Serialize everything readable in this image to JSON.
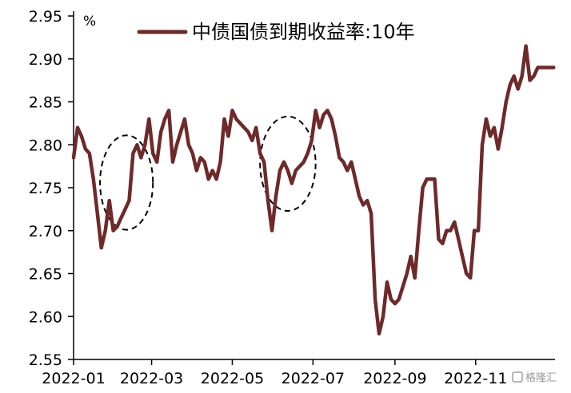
{
  "chart_data": {
    "type": "line",
    "title": "",
    "ylabel": "%",
    "xlabel": "",
    "ylim": [
      2.55,
      2.95
    ],
    "yticks": [
      2.55,
      2.6,
      2.65,
      2.7,
      2.75,
      2.8,
      2.85,
      2.9,
      2.95
    ],
    "ytick_labels": [
      "2.55",
      "2.60",
      "2.65",
      "2.70",
      "2.75",
      "2.80",
      "2.85",
      "2.90",
      "2.95"
    ],
    "xlim": [
      "2022-01-01",
      "2022-12-31"
    ],
    "xticks": [
      "2022-01-01",
      "2022-03-01",
      "2022-05-01",
      "2022-07-01",
      "2022-09-01",
      "2022-11-01"
    ],
    "xtick_labels": [
      "2022-01",
      "2022-03",
      "2022-05",
      "2022-07",
      "2022-09",
      "2022-11"
    ],
    "grid": false,
    "legend_position": "top",
    "colors": {
      "line": "#6e2a2a",
      "axis": "#000000",
      "annotation": "#000000"
    },
    "series": [
      {
        "name": "中债国债到期收益率:10年",
        "x": [
          "2022-01-01",
          "2022-01-04",
          "2022-01-07",
          "2022-01-10",
          "2022-01-13",
          "2022-01-16",
          "2022-01-19",
          "2022-01-22",
          "2022-01-25",
          "2022-01-28",
          "2022-01-31",
          "2022-02-03",
          "2022-02-06",
          "2022-02-09",
          "2022-02-12",
          "2022-02-15",
          "2022-02-18",
          "2022-02-21",
          "2022-02-24",
          "2022-02-27",
          "2022-03-02",
          "2022-03-05",
          "2022-03-08",
          "2022-03-11",
          "2022-03-14",
          "2022-03-17",
          "2022-03-20",
          "2022-03-23",
          "2022-03-26",
          "2022-03-29",
          "2022-04-01",
          "2022-04-04",
          "2022-04-07",
          "2022-04-10",
          "2022-04-13",
          "2022-04-16",
          "2022-04-19",
          "2022-04-22",
          "2022-04-25",
          "2022-04-28",
          "2022-05-01",
          "2022-05-04",
          "2022-05-07",
          "2022-05-10",
          "2022-05-13",
          "2022-05-16",
          "2022-05-19",
          "2022-05-22",
          "2022-05-25",
          "2022-05-28",
          "2022-05-31",
          "2022-06-03",
          "2022-06-06",
          "2022-06-09",
          "2022-06-12",
          "2022-06-15",
          "2022-06-18",
          "2022-06-21",
          "2022-06-24",
          "2022-06-27",
          "2022-06-30",
          "2022-07-03",
          "2022-07-06",
          "2022-07-09",
          "2022-07-12",
          "2022-07-15",
          "2022-07-18",
          "2022-07-21",
          "2022-07-24",
          "2022-07-27",
          "2022-07-30",
          "2022-08-02",
          "2022-08-05",
          "2022-08-08",
          "2022-08-11",
          "2022-08-14",
          "2022-08-17",
          "2022-08-20",
          "2022-08-23",
          "2022-08-26",
          "2022-08-29",
          "2022-09-01",
          "2022-09-04",
          "2022-09-07",
          "2022-09-10",
          "2022-09-13",
          "2022-09-16",
          "2022-09-19",
          "2022-09-22",
          "2022-09-25",
          "2022-09-28",
          "2022-10-01",
          "2022-10-04",
          "2022-10-07",
          "2022-10-10",
          "2022-10-13",
          "2022-10-16",
          "2022-10-19",
          "2022-10-22",
          "2022-10-25",
          "2022-10-28",
          "2022-10-31",
          "2022-11-03",
          "2022-11-06",
          "2022-11-09",
          "2022-11-12",
          "2022-11-15",
          "2022-11-18",
          "2022-11-21",
          "2022-11-24",
          "2022-11-27",
          "2022-11-30",
          "2022-12-03",
          "2022-12-06",
          "2022-12-09",
          "2022-12-12",
          "2022-12-15",
          "2022-12-18",
          "2022-12-21",
          "2022-12-24",
          "2022-12-27",
          "2022-12-30"
        ],
        "values": [
          2.785,
          2.82,
          2.81,
          2.795,
          2.79,
          2.76,
          2.72,
          2.68,
          2.7,
          2.735,
          2.7,
          2.705,
          2.715,
          2.725,
          2.735,
          2.79,
          2.8,
          2.785,
          2.8,
          2.83,
          2.79,
          2.78,
          2.815,
          2.83,
          2.84,
          2.78,
          2.8,
          2.815,
          2.83,
          2.8,
          2.79,
          2.77,
          2.785,
          2.78,
          2.76,
          2.77,
          2.76,
          2.78,
          2.83,
          2.81,
          2.84,
          2.83,
          2.825,
          2.82,
          2.815,
          2.805,
          2.82,
          2.79,
          2.78,
          2.735,
          2.7,
          2.74,
          2.77,
          2.78,
          2.77,
          2.755,
          2.77,
          2.775,
          2.78,
          2.79,
          2.805,
          2.84,
          2.82,
          2.835,
          2.84,
          2.83,
          2.81,
          2.785,
          2.78,
          2.77,
          2.78,
          2.76,
          2.74,
          2.73,
          2.735,
          2.72,
          2.62,
          2.58,
          2.6,
          2.64,
          2.62,
          2.615,
          2.62,
          2.635,
          2.65,
          2.67,
          2.645,
          2.7,
          2.75,
          2.76,
          2.76,
          2.76,
          2.69,
          2.685,
          2.7,
          2.7,
          2.71,
          2.69,
          2.67,
          2.65,
          2.645,
          2.7,
          2.7,
          2.8,
          2.83,
          2.81,
          2.82,
          2.795,
          2.82,
          2.85,
          2.87,
          2.88,
          2.865,
          2.88,
          2.915,
          2.875,
          2.88,
          2.89,
          2.89,
          2.89,
          2.89,
          2.89
        ]
      }
    ],
    "annotations": [
      {
        "type": "ellipse",
        "cx": "2022-02-10",
        "cy": 2.756,
        "rx_days": 20,
        "ry": 0.11
      },
      {
        "type": "ellipse",
        "cx": "2022-06-12",
        "cy": 2.778,
        "rx_days": 21,
        "ry": 0.11
      }
    ]
  },
  "watermark": {
    "text": "格隆汇"
  }
}
